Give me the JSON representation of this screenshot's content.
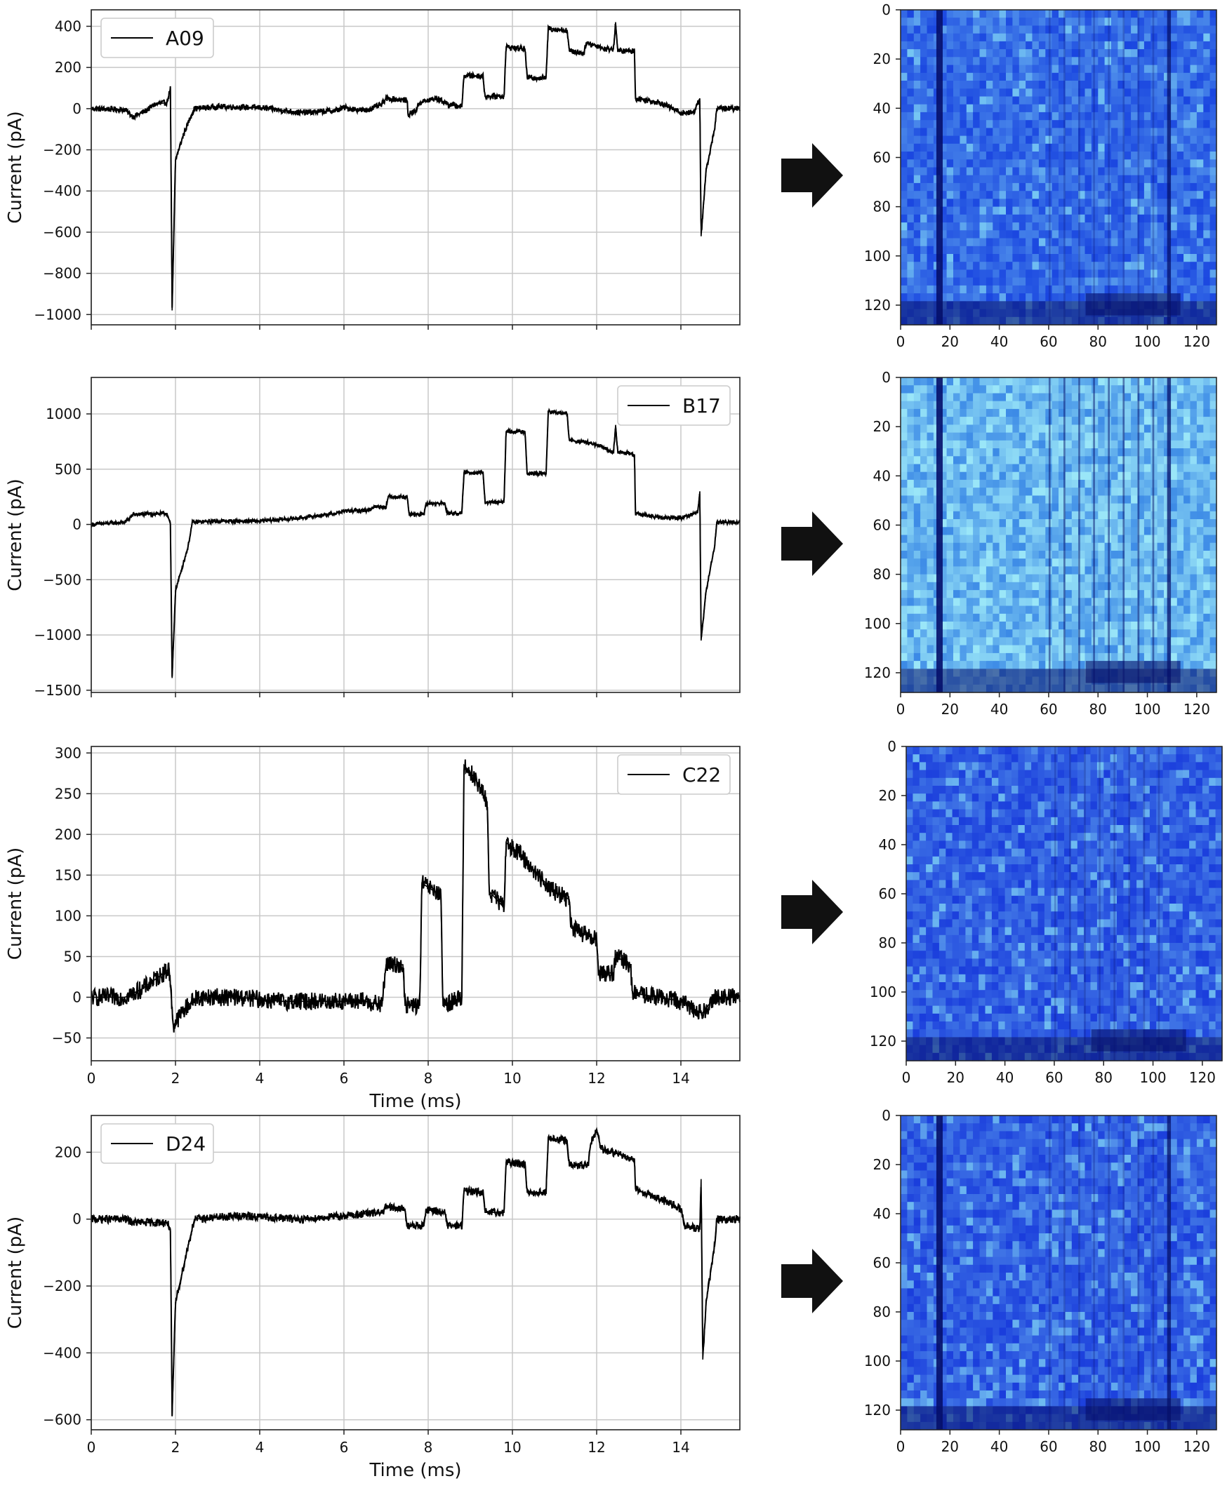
{
  "chart_data": [
    {
      "type": "line",
      "legend": "A09",
      "legend_position": "top-left",
      "ylabel": "Current (pA)",
      "xlabel": "",
      "xlim": [
        0,
        15.4
      ],
      "ylim": [
        -1050,
        480
      ],
      "yticks": [
        400,
        200,
        0,
        -200,
        -400,
        -600,
        -800,
        -1000
      ],
      "xticks": [
        0,
        2,
        4,
        6,
        8,
        10,
        12,
        14
      ],
      "show_x_tick_labels": false,
      "grid": true,
      "line_color": "#000000",
      "segments": [
        [
          0,
          0
        ],
        [
          0.8,
          -5
        ],
        [
          1.0,
          -40
        ],
        [
          1.3,
          -10
        ],
        [
          1.5,
          20
        ],
        [
          1.8,
          30
        ],
        [
          1.88,
          100
        ],
        [
          1.92,
          -980
        ],
        [
          2.0,
          -250
        ],
        [
          2.2,
          -120
        ],
        [
          2.4,
          -20
        ],
        [
          2.45,
          0
        ],
        [
          3.0,
          10
        ],
        [
          4.0,
          5
        ],
        [
          5.0,
          -20
        ],
        [
          5.8,
          -10
        ],
        [
          6.0,
          5
        ],
        [
          6.5,
          -10
        ],
        [
          6.9,
          20
        ],
        [
          7.0,
          50
        ],
        [
          7.5,
          40
        ],
        [
          7.52,
          -30
        ],
        [
          7.7,
          -10
        ],
        [
          7.8,
          30
        ],
        [
          8.2,
          50
        ],
        [
          8.5,
          20
        ],
        [
          8.8,
          10
        ],
        [
          8.85,
          160
        ],
        [
          9.3,
          160
        ],
        [
          9.35,
          60
        ],
        [
          9.8,
          60
        ],
        [
          9.85,
          300
        ],
        [
          10.3,
          290
        ],
        [
          10.35,
          150
        ],
        [
          10.8,
          150
        ],
        [
          10.85,
          390
        ],
        [
          11.3,
          380
        ],
        [
          11.35,
          280
        ],
        [
          11.7,
          270
        ],
        [
          11.75,
          320
        ],
        [
          12.1,
          300
        ],
        [
          12.15,
          290
        ],
        [
          12.4,
          290
        ],
        [
          12.45,
          420
        ],
        [
          12.5,
          280
        ],
        [
          12.9,
          280
        ],
        [
          12.92,
          50
        ],
        [
          13.5,
          30
        ],
        [
          14.0,
          -20
        ],
        [
          14.3,
          -20
        ],
        [
          14.45,
          50
        ],
        [
          14.48,
          -620
        ],
        [
          14.6,
          -300
        ],
        [
          14.8,
          -100
        ],
        [
          14.85,
          0
        ],
        [
          15.4,
          0
        ]
      ],
      "noise": 14
    },
    {
      "type": "line",
      "legend": "B17",
      "legend_position": "top-right",
      "ylabel": "Current (pA)",
      "xlabel": "",
      "xlim": [
        0,
        15.4
      ],
      "ylim": [
        -1520,
        1330
      ],
      "yticks": [
        1000,
        500,
        0,
        -500,
        -1000,
        -1500
      ],
      "xticks": [
        0,
        2,
        4,
        6,
        8,
        10,
        12,
        14
      ],
      "show_x_tick_labels": false,
      "grid": true,
      "line_color": "#000000",
      "segments": [
        [
          0,
          0
        ],
        [
          0.8,
          20
        ],
        [
          1.0,
          90
        ],
        [
          1.8,
          100
        ],
        [
          1.88,
          0
        ],
        [
          1.92,
          -1390
        ],
        [
          2.0,
          -600
        ],
        [
          2.3,
          -200
        ],
        [
          2.4,
          20
        ],
        [
          3.0,
          30
        ],
        [
          4.0,
          30
        ],
        [
          5.0,
          60
        ],
        [
          5.8,
          100
        ],
        [
          6.0,
          120
        ],
        [
          6.6,
          130
        ],
        [
          6.7,
          160
        ],
        [
          7.0,
          160
        ],
        [
          7.05,
          250
        ],
        [
          7.5,
          250
        ],
        [
          7.55,
          90
        ],
        [
          7.9,
          90
        ],
        [
          7.95,
          190
        ],
        [
          8.4,
          190
        ],
        [
          8.45,
          100
        ],
        [
          8.8,
          100
        ],
        [
          8.85,
          470
        ],
        [
          9.3,
          470
        ],
        [
          9.35,
          200
        ],
        [
          9.8,
          200
        ],
        [
          9.85,
          840
        ],
        [
          10.3,
          840
        ],
        [
          10.35,
          460
        ],
        [
          10.8,
          460
        ],
        [
          10.85,
          1020
        ],
        [
          11.3,
          1000
        ],
        [
          11.35,
          760
        ],
        [
          11.8,
          740
        ],
        [
          12.2,
          690
        ],
        [
          12.4,
          650
        ],
        [
          12.45,
          900
        ],
        [
          12.5,
          660
        ],
        [
          12.9,
          630
        ],
        [
          12.92,
          100
        ],
        [
          13.5,
          60
        ],
        [
          14.0,
          60
        ],
        [
          14.4,
          110
        ],
        [
          14.45,
          300
        ],
        [
          14.48,
          -1050
        ],
        [
          14.6,
          -600
        ],
        [
          14.8,
          -200
        ],
        [
          14.85,
          20
        ],
        [
          15.4,
          20
        ]
      ],
      "noise": 18
    },
    {
      "type": "line",
      "legend": "C22",
      "legend_position": "top-right",
      "ylabel": "Current (pA)",
      "xlabel": "Time (ms)",
      "xlim": [
        0,
        15.4
      ],
      "ylim": [
        -78,
        308
      ],
      "yticks": [
        300,
        250,
        200,
        150,
        100,
        50,
        0,
        -50
      ],
      "xticks": [
        0,
        2,
        4,
        6,
        8,
        10,
        12,
        14
      ],
      "show_x_tick_labels": true,
      "grid": true,
      "line_color": "#000000",
      "segments": [
        [
          0,
          0
        ],
        [
          0.8,
          0
        ],
        [
          1.2,
          10
        ],
        [
          1.6,
          25
        ],
        [
          1.85,
          35
        ],
        [
          1.95,
          -35
        ],
        [
          2.2,
          -15
        ],
        [
          2.5,
          0
        ],
        [
          3.5,
          0
        ],
        [
          4.5,
          -5
        ],
        [
          5.5,
          -5
        ],
        [
          6.5,
          -5
        ],
        [
          6.9,
          -10
        ],
        [
          7.0,
          40
        ],
        [
          7.4,
          40
        ],
        [
          7.45,
          -10
        ],
        [
          7.8,
          -10
        ],
        [
          7.85,
          140
        ],
        [
          8.3,
          125
        ],
        [
          8.35,
          -10
        ],
        [
          8.8,
          0
        ],
        [
          8.85,
          285
        ],
        [
          9.1,
          270
        ],
        [
          9.4,
          240
        ],
        [
          9.45,
          130
        ],
        [
          9.8,
          110
        ],
        [
          9.85,
          190
        ],
        [
          10.2,
          175
        ],
        [
          10.6,
          150
        ],
        [
          11.0,
          130
        ],
        [
          11.35,
          120
        ],
        [
          11.4,
          85
        ],
        [
          11.8,
          75
        ],
        [
          12.0,
          70
        ],
        [
          12.05,
          30
        ],
        [
          12.4,
          30
        ],
        [
          12.45,
          50
        ],
        [
          12.8,
          40
        ],
        [
          12.85,
          5
        ],
        [
          13.5,
          0
        ],
        [
          14.0,
          -5
        ],
        [
          14.5,
          -20
        ],
        [
          14.8,
          0
        ],
        [
          15.4,
          0
        ]
      ],
      "noise": 11
    },
    {
      "type": "line",
      "legend": "D24",
      "legend_position": "top-left",
      "ylabel": "Current (pA)",
      "xlabel": "Time (ms)",
      "xlim": [
        0,
        15.4
      ],
      "ylim": [
        -630,
        310
      ],
      "yticks": [
        200,
        0,
        -200,
        -400,
        -600
      ],
      "xticks": [
        0,
        2,
        4,
        6,
        8,
        10,
        12,
        14
      ],
      "show_x_tick_labels": true,
      "grid": true,
      "line_color": "#000000",
      "segments": [
        [
          0,
          0
        ],
        [
          0.8,
          0
        ],
        [
          1.0,
          -10
        ],
        [
          1.8,
          -10
        ],
        [
          1.88,
          -30
        ],
        [
          1.92,
          -590
        ],
        [
          2.0,
          -250
        ],
        [
          2.3,
          -80
        ],
        [
          2.45,
          0
        ],
        [
          3.5,
          10
        ],
        [
          5.0,
          0
        ],
        [
          6.0,
          10
        ],
        [
          6.9,
          20
        ],
        [
          7.0,
          35
        ],
        [
          7.45,
          30
        ],
        [
          7.5,
          -20
        ],
        [
          7.9,
          -20
        ],
        [
          7.95,
          30
        ],
        [
          8.4,
          20
        ],
        [
          8.45,
          -20
        ],
        [
          8.8,
          -20
        ],
        [
          8.85,
          85
        ],
        [
          9.3,
          80
        ],
        [
          9.35,
          20
        ],
        [
          9.8,
          20
        ],
        [
          9.85,
          170
        ],
        [
          10.3,
          165
        ],
        [
          10.35,
          80
        ],
        [
          10.8,
          80
        ],
        [
          10.85,
          240
        ],
        [
          11.3,
          235
        ],
        [
          11.35,
          160
        ],
        [
          11.8,
          160
        ],
        [
          11.85,
          220
        ],
        [
          12.0,
          270
        ],
        [
          12.1,
          210
        ],
        [
          12.9,
          180
        ],
        [
          12.92,
          90
        ],
        [
          13.5,
          60
        ],
        [
          14.0,
          30
        ],
        [
          14.1,
          -20
        ],
        [
          14.45,
          -30
        ],
        [
          14.48,
          120
        ],
        [
          14.52,
          -420
        ],
        [
          14.6,
          -250
        ],
        [
          14.8,
          -80
        ],
        [
          14.85,
          0
        ],
        [
          15.4,
          0
        ]
      ],
      "noise": 12
    }
  ],
  "heatmaps": [
    {
      "type": "heatmap",
      "xticks": [
        0,
        20,
        40,
        60,
        80,
        100,
        120
      ],
      "yticks": [
        0,
        20,
        40,
        60,
        80,
        100,
        120
      ],
      "range": [
        0,
        128
      ],
      "base_color": "#1a46e0",
      "light_color": "#7fd3f5",
      "dark_color": "#06106a",
      "brightness": 0.35
    },
    {
      "type": "heatmap",
      "xticks": [
        0,
        20,
        40,
        60,
        80,
        100,
        120
      ],
      "yticks": [
        0,
        20,
        40,
        60,
        80,
        100,
        120
      ],
      "range": [
        0,
        128
      ],
      "base_color": "#3c8ae6",
      "light_color": "#9ae6f8",
      "dark_color": "#06106a",
      "brightness": 0.7
    },
    {
      "type": "heatmap",
      "xticks": [
        0,
        20,
        40,
        60,
        80,
        100,
        120
      ],
      "yticks": [
        0,
        20,
        40,
        60,
        80,
        100,
        120
      ],
      "range": [
        0,
        128
      ],
      "base_color": "#1a3ddc",
      "light_color": "#7fd3f5",
      "dark_color": "#06106a",
      "brightness": 0.3
    },
    {
      "type": "heatmap",
      "xticks": [
        0,
        20,
        40,
        60,
        80,
        100,
        120
      ],
      "yticks": [
        0,
        20,
        40,
        60,
        80,
        100,
        120
      ],
      "range": [
        0,
        128
      ],
      "base_color": "#1a3ddc",
      "light_color": "#7fd3f5",
      "dark_color": "#06106a",
      "brightness": 0.3
    }
  ],
  "arrow_color": "#111111",
  "grid_color": "#c8c8c8"
}
